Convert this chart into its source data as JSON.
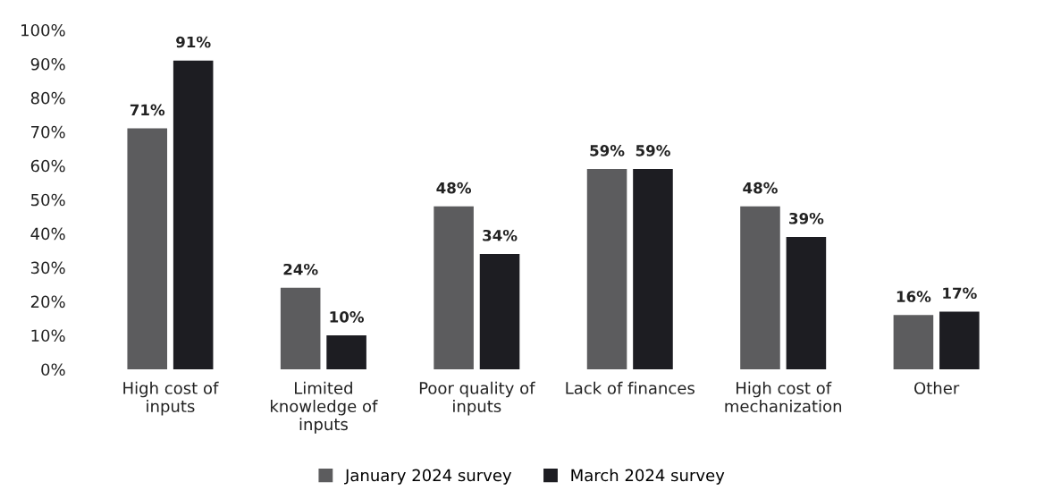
{
  "chart_data": {
    "type": "bar",
    "categories": [
      "High cost of\ninputs",
      "Limited\nknowledge of\ninputs",
      "Poor quality of\ninputs",
      "Lack of finances",
      "High cost of\nmechanization",
      "Other"
    ],
    "series": [
      {
        "name": "January 2024 survey",
        "color": "#5c5c5e",
        "values": [
          71,
          24,
          48,
          59,
          48,
          16
        ],
        "value_labels": [
          "71%",
          "24%",
          "48%",
          "59%",
          "48%",
          "16%"
        ]
      },
      {
        "name": "March 2024 survey",
        "color": "#1d1d22",
        "values": [
          91,
          10,
          34,
          59,
          39,
          17
        ],
        "value_labels": [
          "91%",
          "10%",
          "34%",
          "59%",
          "39%",
          "17%"
        ]
      }
    ],
    "ylim": [
      0,
      100
    ],
    "yticks": [
      {
        "value": 0,
        "label": "0%"
      },
      {
        "value": 10,
        "label": "10%"
      },
      {
        "value": 20,
        "label": "20%"
      },
      {
        "value": 30,
        "label": "30%"
      },
      {
        "value": 40,
        "label": "40%"
      },
      {
        "value": 50,
        "label": "50%"
      },
      {
        "value": 60,
        "label": "60%"
      },
      {
        "value": 70,
        "label": "70%"
      },
      {
        "value": 80,
        "label": "80%"
      },
      {
        "value": 90,
        "label": "90%"
      },
      {
        "value": 100,
        "label": "100%"
      }
    ],
    "grid": false,
    "legend": "bottom"
  }
}
